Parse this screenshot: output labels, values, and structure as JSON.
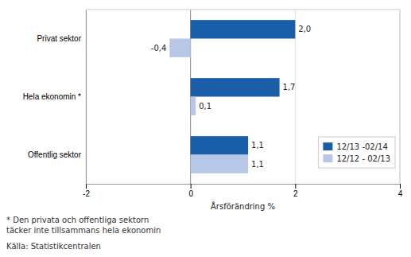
{
  "chart_data": {
    "type": "bar",
    "orientation": "horizontal",
    "categories": [
      "Offentlig sektor",
      "Hela ekonomin *",
      "Privat sektor"
    ],
    "series": [
      {
        "name": "12/13 -02/14",
        "color": "#1a5ea8",
        "values": [
          1.1,
          1.7,
          2.0
        ],
        "value_labels": [
          "1,1",
          "1,7",
          "2,0"
        ]
      },
      {
        "name": "12/12 - 02/13",
        "color": "#b8c7e5",
        "values": [
          1.1,
          0.1,
          -0.4
        ],
        "value_labels": [
          "1,1",
          "0,1",
          "-0,4"
        ]
      }
    ],
    "xlabel": "Årsförändring %",
    "xlim": [
      -2,
      4
    ],
    "xticks": [
      -2,
      0,
      2,
      4
    ],
    "grid": true,
    "legend": "lower right",
    "data_labels": true,
    "annotations": [
      "* Den privata och offentliga sektorn",
      "täcker inte tillsammans hela ekonomin",
      "Källa: Statistikcentralen"
    ]
  }
}
